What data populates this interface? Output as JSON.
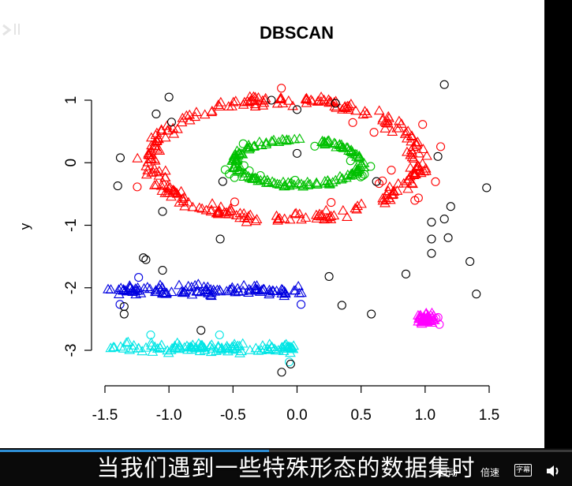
{
  "player": {
    "subtitle_text": "当我们遇到一些特殊形态的数据集时",
    "controls": {
      "auto_label": "自动",
      "speed_label": "倍速",
      "subtitle_icon_label": "字幕",
      "volume_icon": "volume-icon"
    },
    "progress_fraction": 0.47,
    "watermark_icon": "bilibili-logo"
  },
  "chart_data": {
    "type": "scatter",
    "title": "DBSCAN",
    "xlabel": "",
    "ylabel": "y",
    "xlim": [
      -1.55,
      1.55
    ],
    "ylim": [
      -3.55,
      1.35
    ],
    "x_ticks": [
      -1.5,
      -1.0,
      -0.5,
      0.0,
      0.5,
      1.0,
      1.5
    ],
    "x_tick_labels": [
      "-1.5",
      "-1.0",
      "-0.5",
      "0.0",
      "0.5",
      "1.0",
      "1.5"
    ],
    "y_ticks": [
      1,
      0,
      -1,
      -2,
      -3
    ],
    "y_tick_labels": [
      "1",
      "0",
      "-1",
      "-2",
      "-3"
    ],
    "grid": false,
    "legend": "none",
    "clusters": [
      {
        "cluster": 1,
        "color": "#ff0000",
        "shape": "ring",
        "center": [
          -0.1,
          0.05
        ],
        "radius_x": 1.05,
        "radius_y": 0.95,
        "width": 0.12,
        "count": 280
      },
      {
        "cluster": 2,
        "color": "#00c000",
        "shape": "ring",
        "center": [
          0.0,
          0.0
        ],
        "radius_x": 0.5,
        "radius_y": 0.36,
        "width": 0.05,
        "count": 160
      },
      {
        "cluster": 3,
        "color": "#0000e0",
        "shape": "band",
        "x_range": [
          -1.48,
          0.05
        ],
        "y_center": -2.05,
        "y_spread": 0.12,
        "count": 110
      },
      {
        "cluster": 4,
        "color": "#00e5e5",
        "shape": "band",
        "x_range": [
          -1.48,
          -0.02
        ],
        "y_center": -2.97,
        "y_spread": 0.12,
        "count": 110
      },
      {
        "cluster": 5,
        "color": "#ff00ff",
        "shape": "blob",
        "center": [
          1.0,
          -2.5
        ],
        "spread": 0.12,
        "count": 45
      }
    ],
    "noise_points": [
      [
        -1.38,
        0.08
      ],
      [
        -1.4,
        -0.37
      ],
      [
        -1.1,
        0.78
      ],
      [
        -1.0,
        1.05
      ],
      [
        -0.98,
        0.65
      ],
      [
        -1.05,
        -0.78
      ],
      [
        -0.6,
        -1.22
      ],
      [
        -0.58,
        -0.3
      ],
      [
        -0.2,
        1.0
      ],
      [
        0.0,
        0.85
      ],
      [
        0.0,
        0.15
      ],
      [
        0.3,
        0.95
      ],
      [
        0.62,
        -0.3
      ],
      [
        1.15,
        1.25
      ],
      [
        1.1,
        0.1
      ],
      [
        1.48,
        -0.4
      ],
      [
        1.2,
        -0.7
      ],
      [
        1.15,
        -0.9
      ],
      [
        1.05,
        -0.95
      ],
      [
        1.05,
        -1.22
      ],
      [
        1.18,
        -1.2
      ],
      [
        1.05,
        -1.45
      ],
      [
        1.35,
        -1.58
      ],
      [
        0.85,
        -1.78
      ],
      [
        1.4,
        -2.1
      ],
      [
        0.25,
        -1.82
      ],
      [
        0.35,
        -2.28
      ],
      [
        0.58,
        -2.42
      ],
      [
        -1.2,
        -1.52
      ],
      [
        -1.18,
        -1.55
      ],
      [
        -1.05,
        -1.72
      ],
      [
        -1.35,
        -2.3
      ],
      [
        -1.35,
        -2.42
      ],
      [
        -0.75,
        -2.68
      ],
      [
        -0.05,
        -3.22
      ],
      [
        -0.12,
        -3.35
      ]
    ]
  }
}
